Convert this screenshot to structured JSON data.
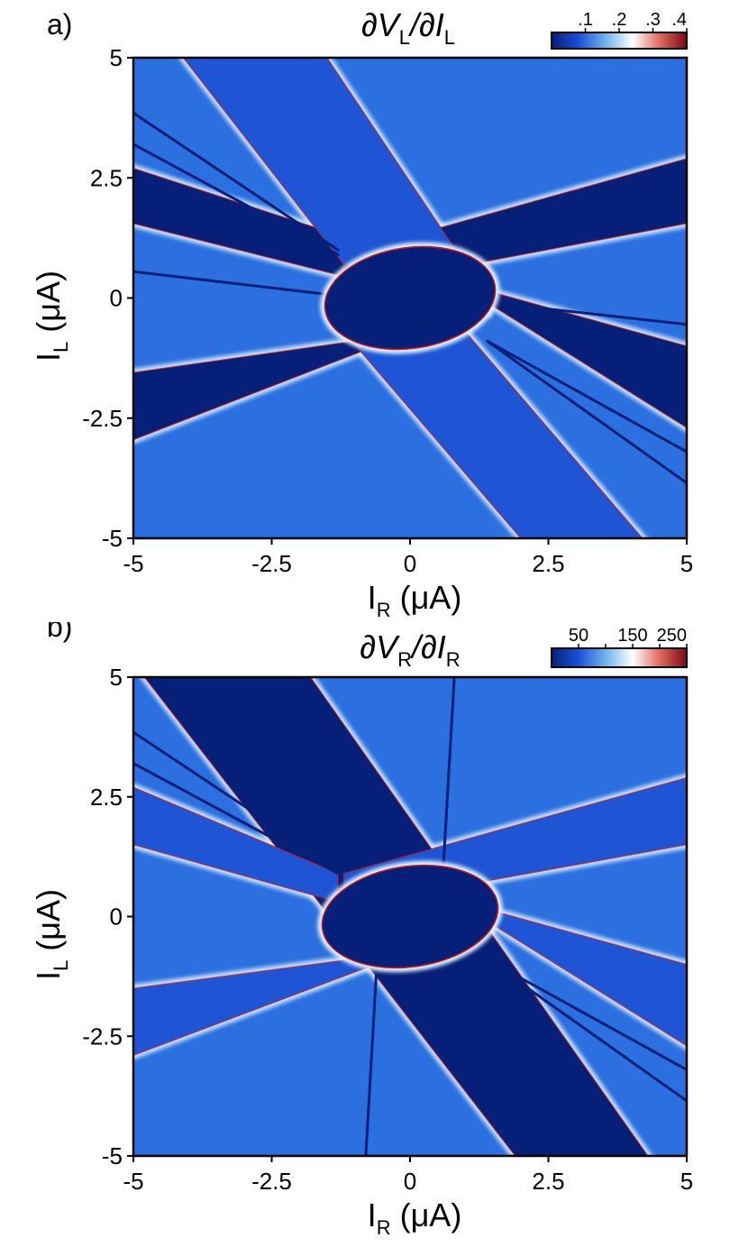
{
  "chart_data": [
    {
      "type": "heatmap",
      "panel_label": "a)",
      "title_parts": {
        "d1": "∂V",
        "s1": "L",
        "mid": "/∂I",
        "s2": "L"
      },
      "xlabel_parts": {
        "main": "I",
        "sub": "R",
        "unit": " (μA)"
      },
      "ylabel_parts": {
        "main": "I",
        "sub": "L",
        "unit": " (μA)"
      },
      "xlim": [
        -5,
        5
      ],
      "ylim": [
        -5,
        5
      ],
      "xticks": [
        -5,
        -2.5,
        0,
        2.5,
        5
      ],
      "xtick_labels": [
        "-5",
        "-2.5",
        "0",
        "2.5",
        "5"
      ],
      "yticks": [
        -5,
        -2.5,
        0,
        2.5,
        5
      ],
      "ytick_labels": [
        "-5",
        "-2.5",
        "0",
        "2.5",
        "5"
      ],
      "colorbar": {
        "range": [
          0,
          0.4
        ],
        "ticks": [
          0.1,
          0.2,
          0.3,
          0.4
        ],
        "tick_labels": [
          ".1",
          ".2",
          ".3",
          ".4"
        ],
        "colors": [
          "#061f78",
          "#1b4fd6",
          "#6fb3ec",
          "#ffffff",
          "#e06a60",
          "#7a0a12"
        ]
      },
      "colors": {
        "background": "#2b6fe0",
        "dark": "#061f78",
        "mid": "#1f55d4",
        "edge": "#c81a1a",
        "glow": "#dff2ff"
      },
      "regions": {
        "ellipse": {
          "cx": 0,
          "cy": 0,
          "rx": 1.55,
          "ry": 1.05,
          "angle": -8
        },
        "bands": [
          {
            "color": "dark",
            "poly": [
              [
                -5,
                2.7
              ],
              [
                -5,
                1.55
              ],
              [
                1.4,
                -0.3
              ],
              [
                1.4,
                0.3
              ]
            ]
          },
          {
            "color": "dark",
            "poly": [
              [
                1.4,
                -0.1
              ],
              [
                1.4,
                0.15
              ],
              [
                5,
                -1.0
              ],
              [
                5,
                -2.7
              ]
            ]
          },
          {
            "color": "dark",
            "poly": [
              [
                -5,
                -1.55
              ],
              [
                -5,
                -2.95
              ],
              [
                -0.4,
                -0.9
              ],
              [
                0.2,
                -0.7
              ]
            ]
          },
          {
            "color": "dark",
            "poly": [
              [
                -1.2,
                0.9
              ],
              [
                -1.2,
                0.2
              ],
              [
                5,
                1.55
              ],
              [
                5,
                2.9
              ]
            ]
          },
          {
            "color": "mid",
            "poly": [
              [
                -4.1,
                5
              ],
              [
                -1.5,
                5
              ],
              [
                1.0,
                0.7
              ],
              [
                -1.2,
                0.7
              ]
            ]
          },
          {
            "color": "mid",
            "poly": [
              [
                -1.2,
                -0.7
              ],
              [
                1.0,
                -0.7
              ],
              [
                4.2,
                -5
              ],
              [
                2.0,
                -5
              ]
            ]
          }
        ],
        "streaks": [
          [
            [
              -5,
              3.85
            ],
            [
              -1.3,
              1.0
            ]
          ],
          [
            [
              -5,
              3.2
            ],
            [
              -1.3,
              0.9
            ]
          ],
          [
            [
              -5,
              0.55
            ],
            [
              -1.3,
              0.05
            ]
          ],
          [
            [
              1.5,
              -0.1
            ],
            [
              5,
              -0.55
            ]
          ],
          [
            [
              1.4,
              -0.9
            ],
            [
              5,
              -3.85
            ]
          ],
          [
            [
              1.4,
              -0.9
            ],
            [
              5,
              -3.2
            ]
          ]
        ]
      }
    },
    {
      "type": "heatmap",
      "panel_label": "b)",
      "title_parts": {
        "d1": "∂V",
        "s1": "R",
        "mid": "/∂I",
        "s2": "R"
      },
      "xlabel_parts": {
        "main": "I",
        "sub": "R",
        "unit": " (μA)"
      },
      "ylabel_parts": {
        "main": "I",
        "sub": "L",
        "unit": " (μA)"
      },
      "xlim": [
        -5,
        5
      ],
      "ylim": [
        -5,
        5
      ],
      "xticks": [
        -5,
        -2.5,
        0,
        2.5,
        5
      ],
      "xtick_labels": [
        "-5",
        "-2.5",
        "0",
        "2.5",
        "5"
      ],
      "yticks": [
        -5,
        -2.5,
        0,
        2.5,
        5
      ],
      "ytick_labels": [
        "-5",
        "-2.5",
        "0",
        "2.5",
        "5"
      ],
      "colorbar": {
        "range": [
          0,
          250
        ],
        "ticks": [
          50,
          100,
          150,
          200,
          250
        ],
        "tick_labels": [
          "50",
          "",
          "150",
          "",
          "250"
        ],
        "colors": [
          "#061f78",
          "#1b4fd6",
          "#6fb3ec",
          "#ffffff",
          "#e06a60",
          "#7a0a12"
        ]
      },
      "colors": {
        "background": "#2b6fe0",
        "dark": "#061f78",
        "mid": "#1f55d4",
        "edge": "#c81a1a",
        "glow": "#dff2ff"
      },
      "regions": {
        "ellipse": {
          "cx": 0,
          "cy": 0,
          "rx": 1.6,
          "ry": 1.05,
          "angle": -8
        },
        "bands": [
          {
            "color": "dark",
            "poly": [
              [
                -4.8,
                5
              ],
              [
                -1.8,
                5
              ],
              [
                4.3,
                -5
              ],
              [
                1.9,
                -5
              ]
            ]
          },
          {
            "color": "mid",
            "poly": [
              [
                -5,
                2.7
              ],
              [
                -5,
                1.5
              ],
              [
                -1.3,
                0.3
              ],
              [
                -1.3,
                0.9
              ]
            ]
          },
          {
            "color": "mid",
            "poly": [
              [
                -5,
                -1.5
              ],
              [
                -5,
                -2.9
              ],
              [
                -0.4,
                -0.9
              ],
              [
                0.2,
                -0.7
              ]
            ]
          },
          {
            "color": "mid",
            "poly": [
              [
                -1.2,
                0.9
              ],
              [
                -1.2,
                0.2
              ],
              [
                5,
                1.5
              ],
              [
                5,
                2.9
              ]
            ]
          },
          {
            "color": "mid",
            "poly": [
              [
                1.4,
                -0.1
              ],
              [
                1.4,
                0.15
              ],
              [
                5,
                -1.0
              ],
              [
                5,
                -2.7
              ]
            ]
          }
        ],
        "streaks": [
          [
            [
              -5,
              3.85
            ],
            [
              -1.3,
              1.0
            ]
          ],
          [
            [
              -5,
              3.2
            ],
            [
              -1.3,
              0.9
            ]
          ],
          [
            [
              0.8,
              5
            ],
            [
              0.6,
              1.0
            ]
          ],
          [
            [
              -0.8,
              -5
            ],
            [
              -0.6,
              -1.0
            ]
          ],
          [
            [
              1.4,
              -0.9
            ],
            [
              5,
              -3.85
            ]
          ],
          [
            [
              1.4,
              -0.9
            ],
            [
              5,
              -3.2
            ]
          ]
        ]
      }
    }
  ]
}
